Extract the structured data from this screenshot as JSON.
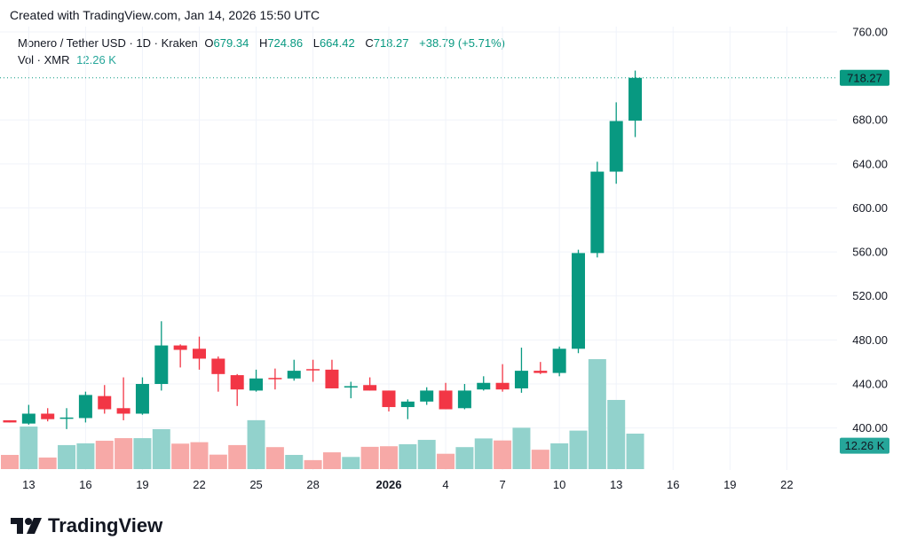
{
  "header": {
    "created": "Created with TradingView.com, Jan 14, 2026 15:50 UTC"
  },
  "legend": {
    "symbol": "Monero / Tether USD · 1D · Kraken",
    "o_label": "O",
    "o": "679.34",
    "h_label": "H",
    "h": "724.86",
    "l_label": "L",
    "l": "664.42",
    "c_label": "C",
    "c": "718.27",
    "change": "+38.79 (+5.71%)",
    "vol_label": "Vol · XMR",
    "vol": "12.26 K"
  },
  "logo": {
    "text": "TradingView"
  },
  "colors": {
    "up": "#089981",
    "down": "#f23645",
    "vol_up": "#92d2cc",
    "vol_down": "#f7a9a7",
    "grid": "#f0f3fa"
  },
  "chart_data": {
    "type": "candlestick",
    "title": "Monero / Tether USD · 1D · Kraken",
    "ylim": [
      390,
      760
    ],
    "price_ticks": [
      "760.00",
      "680.00",
      "640.00",
      "600.00",
      "560.00",
      "520.00",
      "480.00",
      "440.00",
      "400.00"
    ],
    "last_price_label": "718.27",
    "last_volume_label": "12.26 K",
    "x_tick_labels": [
      {
        "day": 1,
        "label": "13"
      },
      {
        "day": 4,
        "label": "16"
      },
      {
        "day": 7,
        "label": "19"
      },
      {
        "day": 10,
        "label": "22"
      },
      {
        "day": 13,
        "label": "25"
      },
      {
        "day": 16,
        "label": "28"
      },
      {
        "day": 20,
        "label": "2026",
        "bold": true
      },
      {
        "day": 23,
        "label": "4"
      },
      {
        "day": 26,
        "label": "7"
      },
      {
        "day": 29,
        "label": "10"
      },
      {
        "day": 32,
        "label": "13"
      },
      {
        "day": 35,
        "label": "16"
      },
      {
        "day": 38,
        "label": "19"
      },
      {
        "day": 41,
        "label": "22"
      }
    ],
    "candles": [
      {
        "date": "2025-12-12",
        "o": 407,
        "h": 407,
        "l": 405,
        "c": 405,
        "v": 4.9
      },
      {
        "date": "2025-12-13",
        "o": 404,
        "h": 421,
        "l": 403,
        "c": 413,
        "v": 14.7
      },
      {
        "date": "2025-12-14",
        "o": 413,
        "h": 418,
        "l": 406,
        "c": 408,
        "v": 4.0
      },
      {
        "date": "2025-12-15",
        "o": 409,
        "h": 418,
        "l": 399,
        "c": 409.5,
        "v": 8.3
      },
      {
        "date": "2025-12-16",
        "o": 409,
        "h": 433,
        "l": 405,
        "c": 430,
        "v": 8.9
      },
      {
        "date": "2025-12-17",
        "o": 429,
        "h": 439,
        "l": 413,
        "c": 417,
        "v": 9.8
      },
      {
        "date": "2025-12-18",
        "o": 418,
        "h": 446,
        "l": 407,
        "c": 413,
        "v": 10.7
      },
      {
        "date": "2025-12-19",
        "o": 413,
        "h": 446,
        "l": 412,
        "c": 440,
        "v": 10.7
      },
      {
        "date": "2025-12-20",
        "o": 440,
        "h": 497,
        "l": 434,
        "c": 475,
        "v": 13.8
      },
      {
        "date": "2025-12-21",
        "o": 475,
        "h": 476,
        "l": 455,
        "c": 471,
        "v": 8.8
      },
      {
        "date": "2025-12-22",
        "o": 472,
        "h": 483,
        "l": 453,
        "c": 463,
        "v": 9.3
      },
      {
        "date": "2025-12-23",
        "o": 463,
        "h": 465,
        "l": 433,
        "c": 449,
        "v": 5.0
      },
      {
        "date": "2025-12-24",
        "o": 448,
        "h": 449,
        "l": 420,
        "c": 435,
        "v": 8.3
      },
      {
        "date": "2025-12-25",
        "o": 434,
        "h": 453,
        "l": 433,
        "c": 445,
        "v": 16.9
      },
      {
        "date": "2025-12-26",
        "o": 445.5,
        "h": 454,
        "l": 435,
        "c": 445,
        "v": 7.6
      },
      {
        "date": "2025-12-27",
        "o": 445,
        "h": 462,
        "l": 443,
        "c": 452,
        "v": 4.9
      },
      {
        "date": "2025-12-28",
        "o": 453.5,
        "h": 462,
        "l": 442,
        "c": 453,
        "v": 3.1
      },
      {
        "date": "2025-12-29",
        "o": 453,
        "h": 462,
        "l": 436,
        "c": 436,
        "v": 5.8
      },
      {
        "date": "2025-12-30",
        "o": 437.5,
        "h": 442,
        "l": 427,
        "c": 438,
        "v": 4.2
      },
      {
        "date": "2025-12-31",
        "o": 439,
        "h": 446,
        "l": 434,
        "c": 434,
        "v": 7.7
      },
      {
        "date": "2026-01-01",
        "o": 434,
        "h": 434,
        "l": 415,
        "c": 419,
        "v": 7.9
      },
      {
        "date": "2026-01-02",
        "o": 419,
        "h": 426,
        "l": 408,
        "c": 424,
        "v": 8.6
      },
      {
        "date": "2026-01-03",
        "o": 424,
        "h": 437,
        "l": 421,
        "c": 434,
        "v": 10.1
      },
      {
        "date": "2026-01-04",
        "o": 434,
        "h": 441,
        "l": 417,
        "c": 417,
        "v": 5.3
      },
      {
        "date": "2026-01-05",
        "o": 418,
        "h": 440,
        "l": 417,
        "c": 434,
        "v": 7.6
      },
      {
        "date": "2026-01-06",
        "o": 435,
        "h": 447,
        "l": 434,
        "c": 441,
        "v": 10.6
      },
      {
        "date": "2026-01-07",
        "o": 441,
        "h": 458,
        "l": 433,
        "c": 435,
        "v": 9.9
      },
      {
        "date": "2026-01-08",
        "o": 436,
        "h": 473,
        "l": 432,
        "c": 452,
        "v": 14.3
      },
      {
        "date": "2026-01-09",
        "o": 452,
        "h": 460,
        "l": 449,
        "c": 450,
        "v": 6.7
      },
      {
        "date": "2026-01-10",
        "o": 450,
        "h": 474,
        "l": 447,
        "c": 472,
        "v": 8.9
      },
      {
        "date": "2026-01-11",
        "o": 472,
        "h": 562,
        "l": 468,
        "c": 559,
        "v": 13.3
      },
      {
        "date": "2026-01-12",
        "o": 559,
        "h": 642,
        "l": 555,
        "c": 633,
        "v": 38.0
      },
      {
        "date": "2026-01-13",
        "o": 633,
        "h": 696,
        "l": 622,
        "c": 679,
        "v": 23.9
      },
      {
        "date": "2026-01-14",
        "o": 679.34,
        "h": 724.86,
        "l": 664.42,
        "c": 718.27,
        "v": 12.26
      }
    ]
  }
}
